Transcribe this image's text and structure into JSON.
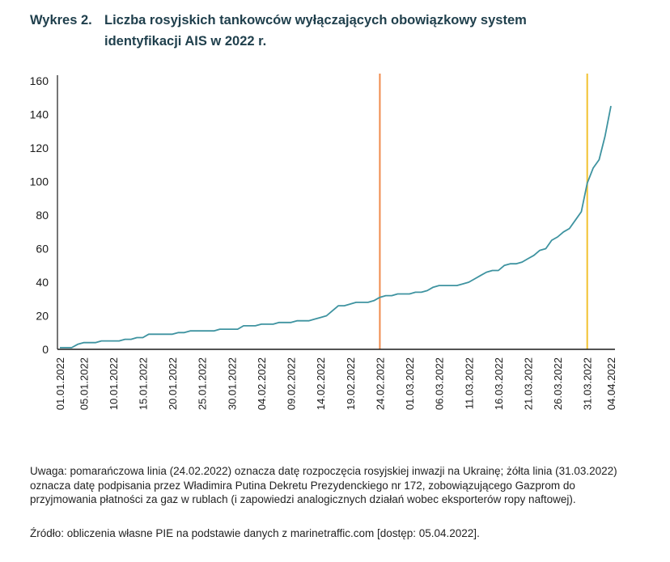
{
  "title": {
    "label": "Wykres 2.",
    "text": "Liczba rosyjskich tankowców wyłączających obowiązkowy system identyfikacji AIS w 2022 r."
  },
  "note": "Uwaga: pomarańczowa linia (24.02.2022) oznacza datę rozpoczęcia rosyjskiej inwazji na Ukrainę; żółta linia (31.03.2022) oznacza datę podpisania przez Władimira Putina Dekretu Prezydenckiego nr 172, zobowiązującego Gazprom do przyjmowania płatności za gaz w rublach (i zapowiedzi analogicznych działań wobec eksporterów ropy naftowej).",
  "source": "Źródło: obliczenia własne PIE na podstawie danych z marinetraffic.com [dostęp: 05.04.2022].",
  "colors": {
    "series": "#3e93a0",
    "orange": "#ef8a4c",
    "yellow": "#f2c230",
    "axis": "#1a1a1a"
  },
  "chart_data": {
    "type": "line",
    "title": "Liczba rosyjskich tankowców wyłączających obowiązkowy system identyfikacji AIS w 2022 r.",
    "xlabel": "",
    "ylabel": "",
    "ylim": [
      0,
      160
    ],
    "yticks": [
      0,
      20,
      40,
      60,
      80,
      100,
      120,
      140,
      160
    ],
    "xticks": [
      "01.01.2022",
      "05.01.2022",
      "10.01.2022",
      "15.01.2022",
      "20.01.2022",
      "25.01.2022",
      "30.01.2022",
      "04.02.2022",
      "09.02.2022",
      "14.02.2022",
      "19.02.2022",
      "24.02.2022",
      "01.03.2022",
      "06.03.2022",
      "11.03.2022",
      "16.03.2022",
      "21.03.2022",
      "26.03.2022",
      "31.03.2022",
      "04.04.2022"
    ],
    "xtick_days": [
      0,
      4,
      9,
      14,
      19,
      24,
      29,
      34,
      39,
      44,
      49,
      54,
      59,
      64,
      69,
      74,
      79,
      84,
      89,
      93
    ],
    "vlines": [
      {
        "day": 54,
        "date": "24.02.2022",
        "color": "#ef8a4c"
      },
      {
        "day": 89,
        "date": "31.03.2022",
        "color": "#f2c230"
      }
    ],
    "series": [
      {
        "name": "Liczba tankowców",
        "color": "#3e93a0",
        "values": [
          1,
          1,
          1,
          3,
          4,
          4,
          4,
          5,
          5,
          5,
          5,
          6,
          6,
          7,
          7,
          9,
          9,
          9,
          9,
          9,
          10,
          10,
          11,
          11,
          11,
          11,
          11,
          12,
          12,
          12,
          12,
          14,
          14,
          14,
          15,
          15,
          15,
          16,
          16,
          16,
          17,
          17,
          17,
          18,
          19,
          20,
          23,
          26,
          26,
          27,
          28,
          28,
          28,
          29,
          31,
          32,
          32,
          33,
          33,
          33,
          34,
          34,
          35,
          37,
          38,
          38,
          38,
          38,
          39,
          40,
          42,
          44,
          46,
          47,
          47,
          50,
          51,
          51,
          52,
          54,
          56,
          59,
          60,
          65,
          67,
          70,
          72,
          77,
          82,
          99,
          108,
          113,
          127,
          145
        ]
      }
    ]
  }
}
